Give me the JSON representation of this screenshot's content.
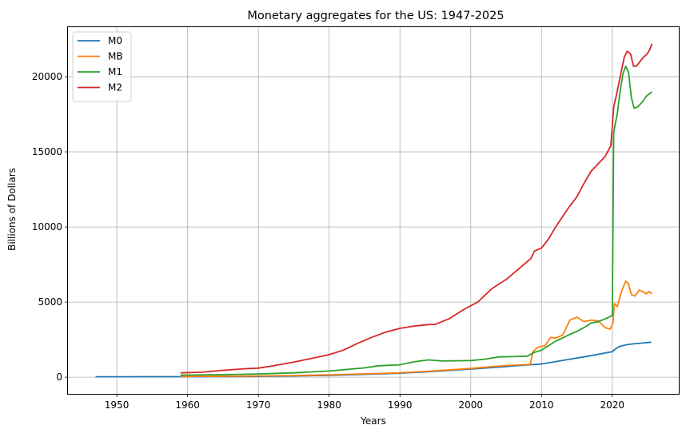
{
  "chart_data": {
    "type": "line",
    "title": "Monetary aggregates for the US: 1947-2025",
    "xlabel": "Years",
    "ylabel": "Billions of Dollars",
    "xlim": [
      1943.1,
      2029.4
    ],
    "ylim": [
      -1110,
      23300
    ],
    "xticks": [
      1950,
      1960,
      1970,
      1980,
      1990,
      2000,
      2010,
      2020
    ],
    "yticks": [
      0,
      5000,
      10000,
      15000,
      20000
    ],
    "grid": true,
    "legend_position": "top-left",
    "series": [
      {
        "name": "M0",
        "color": "#1f77b4",
        "x": [
          1947,
          1950,
          1955,
          1960,
          1965,
          1970,
          1975,
          1980,
          1985,
          1990,
          1995,
          2000,
          2005,
          2008.5,
          2010,
          2012,
          2014,
          2016,
          2018,
          2020,
          2020.5,
          2021,
          2022,
          2023,
          2024,
          2025.5
        ],
        "y": [
          27,
          28,
          31,
          33,
          40,
          55,
          80,
          120,
          185,
          260,
          390,
          540,
          710,
          830,
          880,
          1040,
          1200,
          1350,
          1520,
          1700,
          1900,
          2040,
          2160,
          2220,
          2260,
          2330
        ]
      },
      {
        "name": "MB",
        "color": "#ff7f0e",
        "x": [
          1959,
          1965,
          1970,
          1975,
          1980,
          1985,
          1990,
          1995,
          2000,
          2005,
          2008.4,
          2008.8,
          2009.5,
          2010.5,
          2011.3,
          2012,
          2013,
          2014,
          2015,
          2016,
          2017,
          2018,
          2019,
          2019.7,
          2020.1,
          2020.3,
          2020.7,
          2021.3,
          2021.9,
          2022.3,
          2022.7,
          2023.2,
          2023.8,
          2024.3,
          2024.8,
          2025.2,
          2025.6
        ],
        "y": [
          50,
          60,
          80,
          110,
          160,
          220,
          290,
          420,
          580,
          780,
          850,
          1700,
          2000,
          2100,
          2650,
          2600,
          2800,
          3800,
          4000,
          3700,
          3800,
          3750,
          3300,
          3200,
          3600,
          4900,
          4700,
          5700,
          6400,
          6200,
          5500,
          5400,
          5800,
          5700,
          5550,
          5700,
          5550
        ]
      },
      {
        "name": "M1",
        "color": "#2ca02c",
        "x": [
          1959,
          1965,
          1970,
          1975,
          1980,
          1985,
          1987,
          1990,
          1992,
          1994,
          1996,
          1998,
          2000,
          2002,
          2004,
          2006,
          2008,
          2009,
          2010,
          2011,
          2012,
          2013,
          2014,
          2015,
          2016,
          2017,
          2018,
          2019,
          2020.0,
          2020.2,
          2020.4,
          2020.7,
          2021.1,
          2021.5,
          2021.9,
          2022.3,
          2022.7,
          2023.1,
          2023.6,
          2024.2,
          2024.8,
          2025.6
        ],
        "y": [
          140,
          165,
          215,
          290,
          410,
          620,
          760,
          825,
          1020,
          1150,
          1080,
          1090,
          1110,
          1200,
          1350,
          1370,
          1400,
          1650,
          1800,
          2100,
          2400,
          2620,
          2850,
          3050,
          3300,
          3600,
          3700,
          3880,
          4100,
          16300,
          16800,
          17500,
          19000,
          20200,
          20700,
          20300,
          18600,
          17900,
          18000,
          18300,
          18700,
          19000
        ]
      },
      {
        "name": "M2",
        "color": "#d62728",
        "x": [
          1959,
          1962,
          1965,
          1968,
          1970,
          1972,
          1975,
          1978,
          1980,
          1982,
          1984,
          1986,
          1988,
          1990,
          1992,
          1994,
          1995,
          1997,
          1999,
          2001,
          2003,
          2005,
          2007,
          2008.5,
          2009,
          2010,
          2011,
          2012,
          2013,
          2014,
          2015,
          2016,
          2017,
          2018,
          2019,
          2019.8,
          2020.2,
          2020.6,
          2021.2,
          2021.7,
          2022.1,
          2022.6,
          2023.0,
          2023.4,
          2023.9,
          2024.4,
          2024.9,
          2025.3,
          2025.6
        ],
        "y": [
          290,
          330,
          460,
          560,
          600,
          750,
          1000,
          1300,
          1500,
          1800,
          2250,
          2650,
          3000,
          3250,
          3400,
          3500,
          3520,
          3900,
          4500,
          5000,
          5900,
          6500,
          7300,
          7900,
          8400,
          8600,
          9200,
          10000,
          10700,
          11400,
          12000,
          12900,
          13700,
          14200,
          14700,
          15400,
          18000,
          18800,
          20200,
          21300,
          21700,
          21500,
          20700,
          20700,
          21000,
          21300,
          21500,
          21800,
          22200
        ]
      }
    ]
  }
}
